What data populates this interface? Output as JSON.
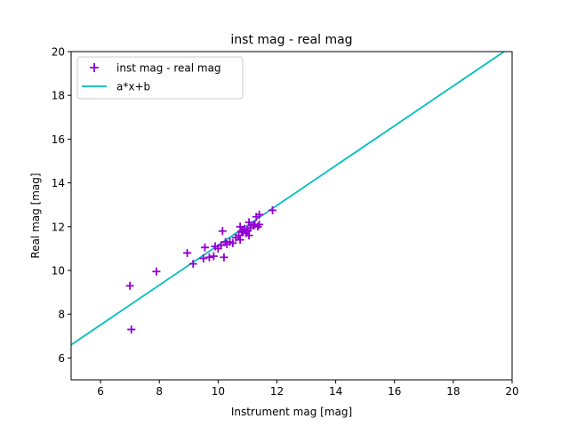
{
  "chart_data": {
    "type": "scatter",
    "title": "inst mag - real mag",
    "xlabel": "Instrument mag [mag]",
    "ylabel": "Real mag [mag]",
    "xlim": [
      5,
      20
    ],
    "ylim": [
      5,
      20
    ],
    "xticks": [
      6,
      8,
      10,
      12,
      14,
      16,
      18,
      20
    ],
    "yticks": [
      6,
      8,
      10,
      12,
      14,
      16,
      18,
      20
    ],
    "grid": false,
    "legend_position": "upper-left",
    "series": [
      {
        "name": "inst mag - real mag",
        "kind": "scatter",
        "marker": "plus",
        "color": "#9400d3",
        "points": [
          [
            7.0,
            9.3
          ],
          [
            7.05,
            7.3
          ],
          [
            7.9,
            9.95
          ],
          [
            8.95,
            10.8
          ],
          [
            9.15,
            10.3
          ],
          [
            9.5,
            10.55
          ],
          [
            9.55,
            11.05
          ],
          [
            9.7,
            10.6
          ],
          [
            9.85,
            10.65
          ],
          [
            9.9,
            11.1
          ],
          [
            10.0,
            11.0
          ],
          [
            10.1,
            11.15
          ],
          [
            10.15,
            11.8
          ],
          [
            10.2,
            10.6
          ],
          [
            10.25,
            11.3
          ],
          [
            10.3,
            11.2
          ],
          [
            10.4,
            11.3
          ],
          [
            10.5,
            11.25
          ],
          [
            10.6,
            11.5
          ],
          [
            10.7,
            11.6
          ],
          [
            10.75,
            11.4
          ],
          [
            10.75,
            12.0
          ],
          [
            10.8,
            11.8
          ],
          [
            10.85,
            11.75
          ],
          [
            10.9,
            11.9
          ],
          [
            10.95,
            11.7
          ],
          [
            11.0,
            11.85
          ],
          [
            11.0,
            11.8
          ],
          [
            11.05,
            12.2
          ],
          [
            11.05,
            11.6
          ],
          [
            11.1,
            11.95
          ],
          [
            11.2,
            12.05
          ],
          [
            11.25,
            12.1
          ],
          [
            11.3,
            12.45
          ],
          [
            11.35,
            12.0
          ],
          [
            11.4,
            12.55
          ],
          [
            11.4,
            12.1
          ],
          [
            11.85,
            12.75
          ]
        ]
      },
      {
        "name": "a*x+b",
        "kind": "line",
        "color": "#00bfbf",
        "a": 0.91,
        "b": 2.05
      }
    ]
  }
}
